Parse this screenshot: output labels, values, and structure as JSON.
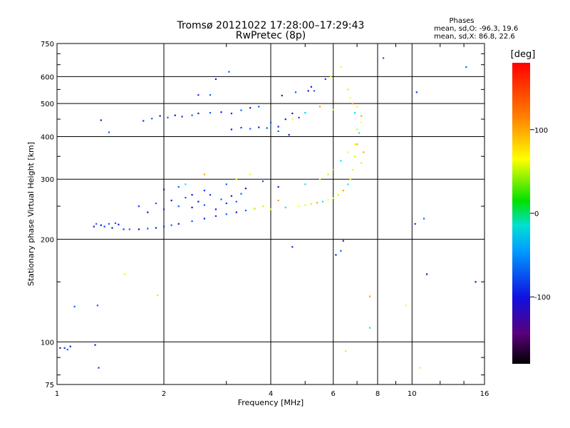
{
  "chart_data": {
    "type": "scatter",
    "title": "Tromsø 20121022 17:28:00–17:29:43",
    "subtitle": "RwPretec (8p)",
    "xlabel": "Frequency [MHz]",
    "ylabel": "Stationary phase Virtual Height [km]",
    "x_scale": "log",
    "y_scale": "log",
    "xlim": [
      1,
      16
    ],
    "ylim": [
      75,
      750
    ],
    "x_ticks": [
      1,
      2,
      4,
      6,
      8,
      10,
      16
    ],
    "y_ticks": [
      75,
      100,
      200,
      300,
      400,
      500,
      600,
      750
    ],
    "x_tick_labels": [
      "1",
      "2",
      "4",
      "6",
      "8",
      "10",
      "16"
    ],
    "y_tick_labels": [
      "75",
      "100",
      "200",
      "300",
      "400",
      "500",
      "600",
      "750"
    ],
    "grid": true,
    "stats": {
      "heading": "Phases",
      "line_o": "mean, sd,O:  -96.3, 19.6",
      "line_x": "mean, sd,X:  86.8, 22.6"
    },
    "colorbar": {
      "label": "[deg]",
      "range": [
        -180,
        180
      ],
      "ticks": [
        100,
        0,
        -100
      ],
      "tick_labels": [
        "100",
        "0",
        "-100"
      ],
      "colormap": "rainbow"
    },
    "series": [
      {
        "points": [
          [
            1.02,
            96
          ],
          [
            1.05,
            96
          ],
          [
            1.07,
            95
          ],
          [
            1.09,
            97
          ],
          [
            1.12,
            127
          ],
          [
            1.28,
            98
          ],
          [
            1.31,
            84
          ],
          [
            1.3,
            128
          ],
          [
            1.27,
            218
          ],
          [
            1.29,
            222
          ],
          [
            1.33,
            220
          ],
          [
            1.36,
            218
          ],
          [
            1.4,
            222
          ],
          [
            1.43,
            216
          ],
          [
            1.46,
            223
          ],
          [
            1.49,
            221
          ],
          [
            1.54,
            214
          ],
          [
            1.6,
            214
          ],
          [
            1.7,
            214
          ],
          [
            1.8,
            215
          ],
          [
            1.9,
            216
          ],
          [
            2.0,
            218
          ],
          [
            2.1,
            220
          ],
          [
            2.2,
            222
          ],
          [
            2.4,
            226
          ],
          [
            2.6,
            230
          ],
          [
            2.8,
            234
          ],
          [
            3.0,
            237
          ],
          [
            3.2,
            240
          ],
          [
            3.4,
            243
          ],
          [
            3.6,
            246
          ],
          [
            1.7,
            250
          ],
          [
            1.9,
            255
          ],
          [
            2.1,
            260
          ],
          [
            2.3,
            265
          ],
          [
            2.5,
            258
          ],
          [
            2.7,
            270
          ],
          [
            2.9,
            262
          ],
          [
            3.1,
            268
          ],
          [
            3.3,
            272
          ],
          [
            1.8,
            240
          ],
          [
            2.0,
            245
          ],
          [
            2.2,
            250
          ],
          [
            2.4,
            248
          ],
          [
            2.6,
            252
          ],
          [
            2.8,
            245
          ],
          [
            3.0,
            255
          ],
          [
            3.2,
            258
          ],
          [
            2.0,
            280
          ],
          [
            2.2,
            285
          ],
          [
            2.4,
            270
          ],
          [
            2.6,
            278
          ],
          [
            3.0,
            290
          ],
          [
            3.4,
            282
          ],
          [
            3.8,
            296
          ],
          [
            4.2,
            285
          ],
          [
            1.75,
            445
          ],
          [
            1.85,
            452
          ],
          [
            1.95,
            460
          ],
          [
            2.05,
            455
          ],
          [
            2.15,
            462
          ],
          [
            2.25,
            458
          ],
          [
            2.4,
            462
          ],
          [
            2.5,
            468
          ],
          [
            2.7,
            470
          ],
          [
            2.9,
            472
          ],
          [
            3.1,
            468
          ],
          [
            3.3,
            478
          ],
          [
            3.5,
            486
          ],
          [
            3.7,
            490
          ],
          [
            3.1,
            420
          ],
          [
            3.3,
            425
          ],
          [
            3.5,
            422
          ],
          [
            3.7,
            426
          ],
          [
            3.9,
            424
          ],
          [
            4.2,
            428
          ],
          [
            2.5,
            530
          ],
          [
            2.7,
            530
          ],
          [
            4.3,
            528
          ],
          [
            4.7,
            540
          ],
          [
            5.2,
            560
          ],
          [
            5.7,
            590
          ],
          [
            5.3,
            545
          ],
          [
            5.1,
            545
          ],
          [
            4.0,
            440
          ],
          [
            4.4,
            450
          ],
          [
            4.8,
            455
          ],
          [
            5.0,
            470
          ],
          [
            4.6,
            468
          ],
          [
            4.2,
            415
          ],
          [
            4.5,
            405
          ],
          [
            4.6,
            190
          ],
          [
            1.4,
            412
          ],
          [
            1.33,
            447
          ],
          [
            3.05,
            620
          ],
          [
            2.8,
            590
          ],
          [
            10.3,
            540
          ],
          [
            14.2,
            640
          ],
          [
            11,
            158
          ],
          [
            8.3,
            680
          ],
          [
            15.1,
            150
          ],
          [
            10.2,
            222
          ],
          [
            10.8,
            230
          ],
          [
            6.4,
            198
          ],
          [
            6.3,
            185
          ],
          [
            6.1,
            180
          ]
        ]
      },
      {
        "points": [
          [
            4.8,
            250
          ],
          [
            5.0,
            252
          ],
          [
            5.2,
            254
          ],
          [
            5.4,
            256
          ],
          [
            5.6,
            258
          ],
          [
            5.8,
            261
          ],
          [
            6.0,
            264
          ],
          [
            6.2,
            270
          ],
          [
            6.4,
            278
          ],
          [
            6.6,
            290
          ],
          [
            6.7,
            300
          ],
          [
            6.8,
            320
          ],
          [
            6.9,
            350
          ],
          [
            7.0,
            380
          ],
          [
            7.1,
            410
          ],
          [
            7.2,
            440
          ],
          [
            5.5,
            300
          ],
          [
            5.8,
            310
          ],
          [
            6.0,
            320
          ],
          [
            6.3,
            340
          ],
          [
            6.6,
            360
          ],
          [
            6.9,
            380
          ],
          [
            7.0,
            420
          ],
          [
            7.2,
            460
          ],
          [
            4.4,
            248
          ],
          [
            4.0,
            245
          ],
          [
            3.6,
            246
          ],
          [
            3.8,
            250
          ],
          [
            4.2,
            260
          ],
          [
            5.0,
            290
          ],
          [
            5.9,
            600
          ],
          [
            6.3,
            640
          ],
          [
            6.6,
            550
          ],
          [
            6.8,
            500
          ],
          [
            6.9,
            470
          ],
          [
            6.7,
            520
          ],
          [
            7.0,
            490
          ],
          [
            6.0,
            480
          ],
          [
            5.5,
            490
          ],
          [
            5.0,
            470
          ],
          [
            4.6,
            450
          ],
          [
            1.55,
            158
          ],
          [
            1.92,
            137
          ],
          [
            2.6,
            310
          ],
          [
            2.3,
            290
          ],
          [
            3.2,
            300
          ],
          [
            3.5,
            310
          ],
          [
            6.5,
            94
          ],
          [
            7.6,
            136
          ],
          [
            7.6,
            110
          ],
          [
            9.6,
            128
          ],
          [
            10.5,
            84
          ],
          [
            7.2,
            335
          ],
          [
            7.3,
            360
          ]
        ]
      }
    ]
  }
}
